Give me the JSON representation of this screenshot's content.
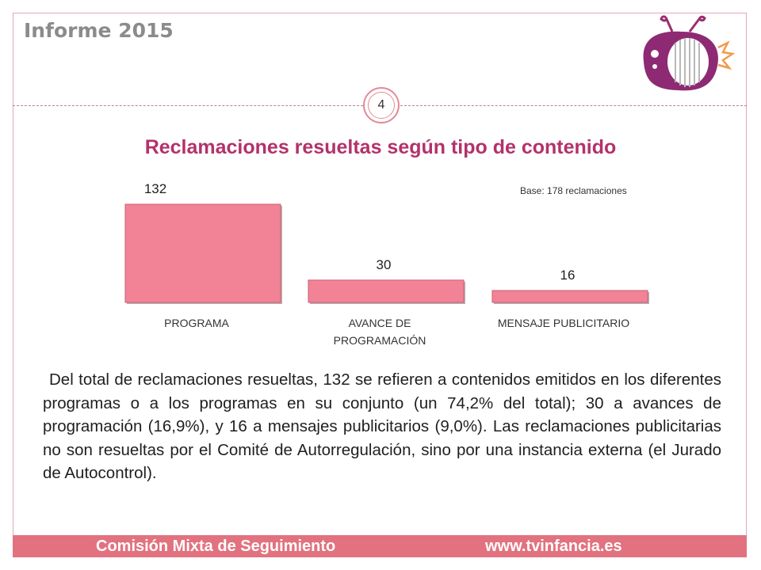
{
  "header": {
    "title": "Informe 2015"
  },
  "page": {
    "number": "4"
  },
  "colors": {
    "bar": "#f28396",
    "title": "#b3326b",
    "footer": "#e2727f"
  },
  "chart_data": {
    "type": "bar",
    "title": "Reclamaciones resueltas según tipo de contenido",
    "note": "Base: 178 reclamaciones",
    "categories": [
      "PROGRAMA",
      "AVANCE DE PROGRAMACIÓN",
      "MENSAJE PUBLICITARIO"
    ],
    "category_lines": [
      [
        "PROGRAMA"
      ],
      [
        "AVANCE DE",
        "PROGRAMACIÓN"
      ],
      [
        "MENSAJE PUBLICITARIO"
      ]
    ],
    "values": [
      132,
      30,
      16
    ],
    "data_labels": [
      "132",
      "30",
      "16"
    ],
    "ylim": [
      0,
      132
    ],
    "grid": false,
    "xlabel": "",
    "ylabel": ""
  },
  "body": {
    "paragraph": "Del total de reclamaciones resueltas, 132 se refieren a contenidos emitidos en los diferentes programas o a los programas en su conjunto (un 74,2% del total); 30 a avances de programación (16,9%), y 16 a mensajes publicitarios (9,0%). Las reclamaciones publicitarias no son resueltas por el Comité de Autorregulación, sino por una instancia externa (el Jurado de Autocontrol)."
  },
  "footer": {
    "left": "Comisión Mixta de Seguimiento",
    "right": "www.tvinfancia.es"
  }
}
